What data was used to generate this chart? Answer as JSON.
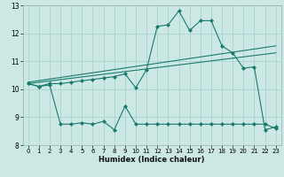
{
  "xlabel": "Humidex (Indice chaleur)",
  "background_color": "#cce8e4",
  "grid_color": "#aad4cf",
  "line_color": "#1a7a6e",
  "xlim": [
    -0.5,
    23.5
  ],
  "ylim": [
    8,
    13
  ],
  "yticks": [
    8,
    9,
    10,
    11,
    12,
    13
  ],
  "xticks": [
    0,
    1,
    2,
    3,
    4,
    5,
    6,
    7,
    8,
    9,
    10,
    11,
    12,
    13,
    14,
    15,
    16,
    17,
    18,
    19,
    20,
    21,
    22,
    23
  ],
  "line_main_x": [
    0,
    1,
    2,
    3,
    4,
    5,
    6,
    7,
    8,
    9,
    10,
    11,
    12,
    13,
    14,
    15,
    16,
    17,
    18,
    19,
    20,
    21,
    22,
    23
  ],
  "line_main_y": [
    10.2,
    10.1,
    10.2,
    10.2,
    10.25,
    10.3,
    10.35,
    10.4,
    10.45,
    10.55,
    10.05,
    10.7,
    12.25,
    12.3,
    12.8,
    12.1,
    12.45,
    12.45,
    11.55,
    11.3,
    10.75,
    10.8,
    8.55,
    8.65
  ],
  "line_trend1_x": [
    0,
    23
  ],
  "line_trend1_y": [
    10.2,
    11.3
  ],
  "line_trend2_x": [
    0,
    23
  ],
  "line_trend2_y": [
    10.25,
    11.55
  ],
  "line_low_x": [
    0,
    1,
    2,
    3,
    4,
    5,
    6,
    7,
    8,
    9,
    10,
    11,
    12,
    13,
    14,
    15,
    16,
    17,
    18,
    19,
    20,
    21,
    22,
    23
  ],
  "line_low_y": [
    10.2,
    10.1,
    10.15,
    8.75,
    8.75,
    8.8,
    8.75,
    8.85,
    8.55,
    9.4,
    8.75,
    8.75,
    8.75,
    8.75,
    8.75,
    8.75,
    8.75,
    8.75,
    8.75,
    8.75,
    8.75,
    8.75,
    8.75,
    8.6
  ]
}
